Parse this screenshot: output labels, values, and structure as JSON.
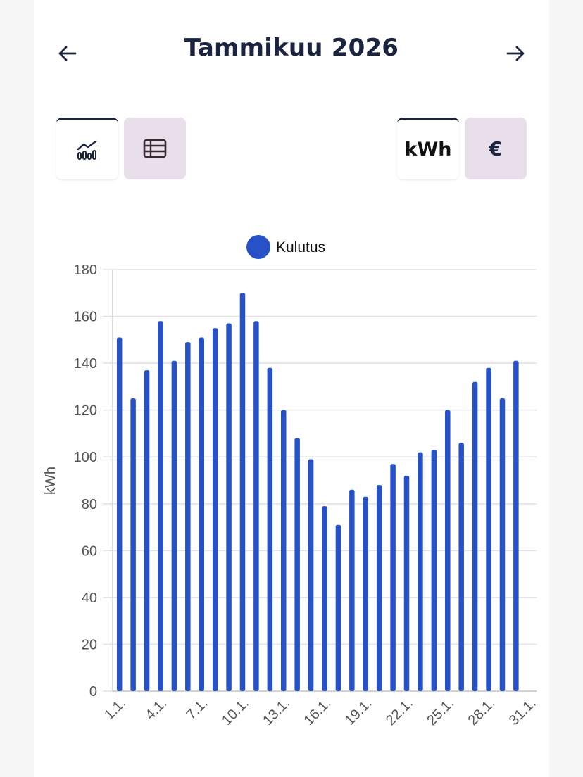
{
  "header": {
    "title": "Tammikuu 2026",
    "prev_icon": "arrow-left-icon",
    "next_icon": "arrow-right-icon"
  },
  "view_toggle": {
    "chart_icon": "line-chart-icon",
    "table_icon": "table-icon"
  },
  "unit_toggle": {
    "kwh_label": "kWh",
    "euro_label": "€"
  },
  "colors": {
    "accent": "#2752c7",
    "title": "#1a2340",
    "inactive_bg": "#e9dfea"
  },
  "chart_data": {
    "type": "bar",
    "title": "",
    "legend": [
      "Kulutus"
    ],
    "ylabel": "kWh",
    "xlabel": "",
    "ylim": [
      0,
      180
    ],
    "yticks": [
      0,
      20,
      40,
      60,
      80,
      100,
      120,
      140,
      160,
      180
    ],
    "categories": [
      "1.1.",
      "2.1.",
      "3.1.",
      "4.1.",
      "5.1.",
      "6.1.",
      "7.1.",
      "8.1.",
      "9.1.",
      "10.1.",
      "11.1.",
      "12.1.",
      "13.1.",
      "14.1.",
      "15.1.",
      "16.1.",
      "17.1.",
      "18.1.",
      "19.1.",
      "20.1.",
      "21.1.",
      "22.1.",
      "23.1.",
      "24.1.",
      "25.1.",
      "26.1.",
      "27.1.",
      "28.1.",
      "29.1.",
      "30.1.",
      "31.1."
    ],
    "xtick_labels": [
      "1.1.",
      "4.1.",
      "7.1.",
      "10.1.",
      "13.1.",
      "16.1.",
      "19.1.",
      "22.1.",
      "25.1.",
      "28.1.",
      "31.1."
    ],
    "series": [
      {
        "name": "Kulutus",
        "values": [
          151,
          125,
          137,
          158,
          141,
          149,
          151,
          155,
          157,
          170,
          158,
          138,
          120,
          108,
          99,
          79,
          71,
          86,
          83,
          88,
          97,
          92,
          102,
          103,
          120,
          106,
          132,
          138,
          125,
          141,
          0
        ]
      }
    ]
  }
}
